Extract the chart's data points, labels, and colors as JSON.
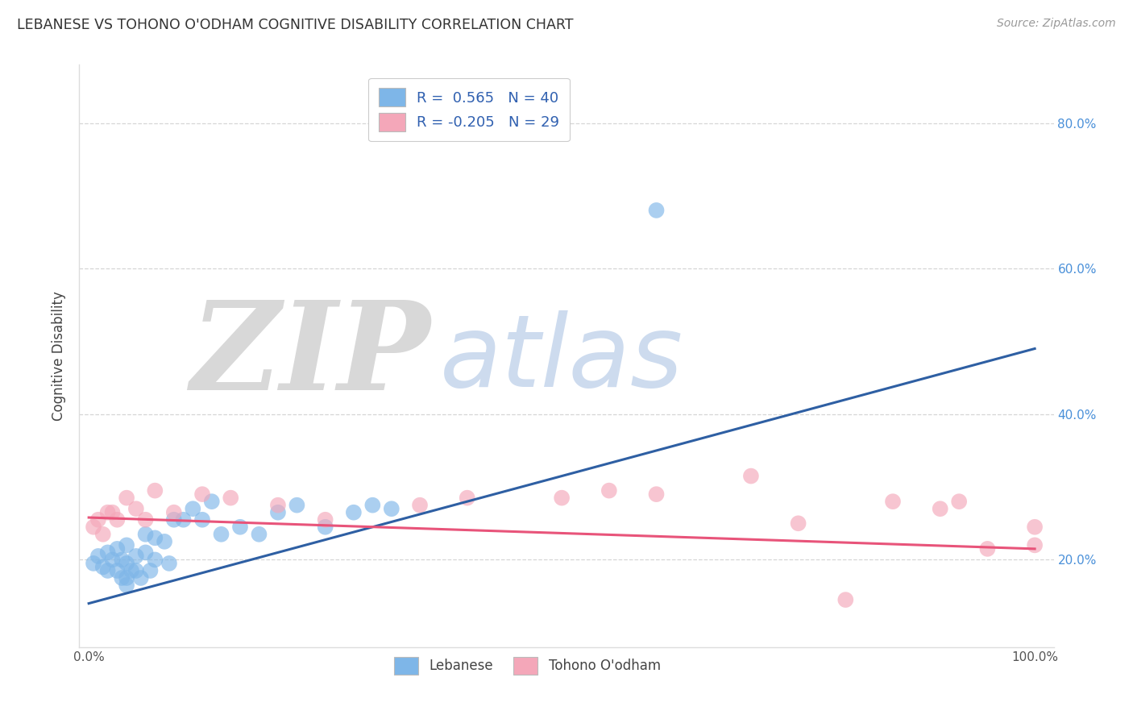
{
  "title": "LEBANESE VS TOHONO O'ODHAM COGNITIVE DISABILITY CORRELATION CHART",
  "source": "Source: ZipAtlas.com",
  "ylabel": "Cognitive Disability",
  "xlim": [
    -0.01,
    1.02
  ],
  "ylim": [
    0.08,
    0.88
  ],
  "yticks_right": [
    0.2,
    0.4,
    0.6,
    0.8
  ],
  "ytick_right_labels": [
    "20.0%",
    "40.0%",
    "60.0%",
    "80.0%"
  ],
  "color_blue": "#7eb6e8",
  "color_pink": "#f4a7b9",
  "line_blue": "#2e5fa3",
  "line_pink": "#e8547a",
  "blue_scatter_x": [
    0.005,
    0.01,
    0.015,
    0.02,
    0.02,
    0.025,
    0.03,
    0.03,
    0.035,
    0.035,
    0.04,
    0.04,
    0.04,
    0.04,
    0.045,
    0.05,
    0.05,
    0.055,
    0.06,
    0.06,
    0.065,
    0.07,
    0.07,
    0.08,
    0.085,
    0.09,
    0.1,
    0.11,
    0.12,
    0.13,
    0.14,
    0.16,
    0.18,
    0.2,
    0.22,
    0.25,
    0.28,
    0.3,
    0.6,
    0.32
  ],
  "blue_scatter_y": [
    0.195,
    0.205,
    0.19,
    0.21,
    0.185,
    0.2,
    0.215,
    0.185,
    0.2,
    0.175,
    0.22,
    0.195,
    0.175,
    0.165,
    0.185,
    0.205,
    0.185,
    0.175,
    0.235,
    0.21,
    0.185,
    0.23,
    0.2,
    0.225,
    0.195,
    0.255,
    0.255,
    0.27,
    0.255,
    0.28,
    0.235,
    0.245,
    0.235,
    0.265,
    0.275,
    0.245,
    0.265,
    0.275,
    0.68,
    0.27
  ],
  "pink_scatter_x": [
    0.005,
    0.01,
    0.015,
    0.02,
    0.025,
    0.03,
    0.04,
    0.05,
    0.06,
    0.07,
    0.09,
    0.12,
    0.15,
    0.2,
    0.25,
    0.35,
    0.4,
    0.5,
    0.55,
    0.6,
    0.7,
    0.75,
    0.8,
    0.85,
    0.9,
    0.92,
    0.95,
    1.0,
    1.0
  ],
  "pink_scatter_y": [
    0.245,
    0.255,
    0.235,
    0.265,
    0.265,
    0.255,
    0.285,
    0.27,
    0.255,
    0.295,
    0.265,
    0.29,
    0.285,
    0.275,
    0.255,
    0.275,
    0.285,
    0.285,
    0.295,
    0.29,
    0.315,
    0.25,
    0.145,
    0.28,
    0.27,
    0.28,
    0.215,
    0.245,
    0.22
  ],
  "blue_line_x": [
    0.0,
    1.0
  ],
  "blue_line_y": [
    0.14,
    0.49
  ],
  "pink_line_x": [
    0.0,
    1.0
  ],
  "pink_line_y": [
    0.258,
    0.215
  ]
}
